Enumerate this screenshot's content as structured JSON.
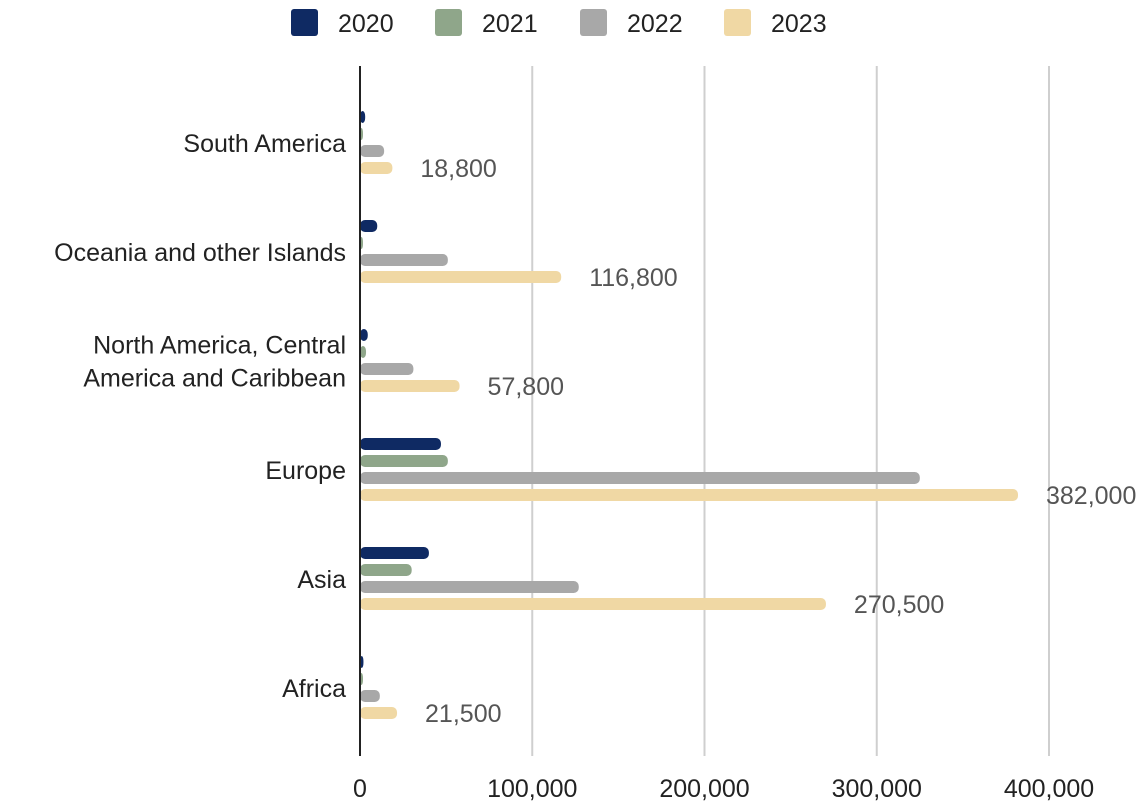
{
  "chart_data": {
    "type": "bar",
    "orientation": "horizontal",
    "categories": [
      "South America",
      "Oceania and other Islands",
      "North America, Central America and Caribbean",
      "Europe",
      "Asia",
      "Africa"
    ],
    "category_lines": [
      [
        "South America"
      ],
      [
        "Oceania and other Islands"
      ],
      [
        "North America, Central",
        "America and Caribbean"
      ],
      [
        "Europe"
      ],
      [
        "Asia"
      ],
      [
        "Africa"
      ]
    ],
    "series": [
      {
        "name": "2020",
        "color": "#0f2a63",
        "values": [
          3000,
          10000,
          4500,
          47000,
          40000,
          2000
        ]
      },
      {
        "name": "2021",
        "color": "#8fa68a",
        "values": [
          1500,
          1500,
          3500,
          51000,
          30000,
          1500
        ]
      },
      {
        "name": "2022",
        "color": "#a8a8a8",
        "values": [
          14000,
          51000,
          31000,
          325000,
          127000,
          11500
        ]
      },
      {
        "name": "2023",
        "color": "#f0d8a4",
        "values": [
          18800,
          116800,
          57800,
          382000,
          270500,
          21500
        ]
      }
    ],
    "data_labels": [
      "18,800",
      "116,800",
      "57,800",
      "382,000",
      "270,500",
      "21,500"
    ],
    "xlim": [
      0,
      400000
    ],
    "x_ticks": [
      0,
      100000,
      200000,
      300000,
      400000
    ],
    "x_tick_labels": [
      "0",
      "100,000",
      "200,000",
      "300,000",
      "400,000"
    ],
    "grid": true,
    "legend_position": "top"
  }
}
